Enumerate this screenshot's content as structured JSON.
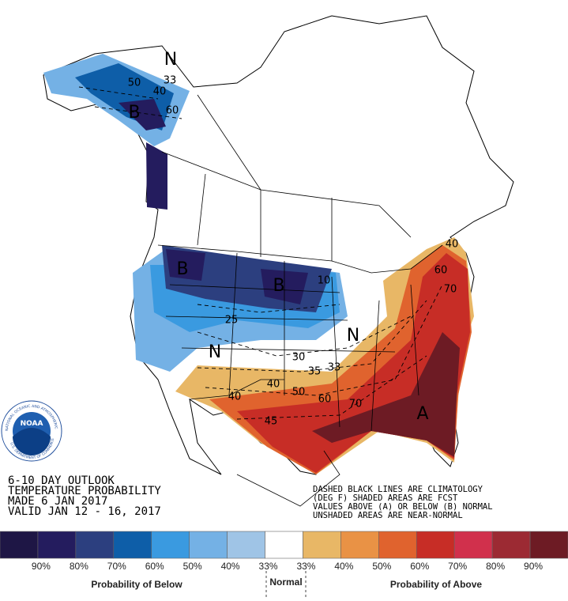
{
  "header": {
    "lines": [
      "6-10 DAY OUTLOOK",
      "TEMPERATURE PROBABILITY",
      "MADE  6 JAN 2017",
      "VALID  JAN 12 - 16, 2017"
    ]
  },
  "notes": {
    "lines": [
      "DASHED BLACK LINES ARE CLIMATOLOGY",
      "(DEG F) SHADED AREAS ARE FCST",
      "VALUES ABOVE (A) OR BELOW (B) NORMAL",
      "UNSHADED AREAS ARE NEAR-NORMAL"
    ]
  },
  "logo": {
    "name": "NOAA",
    "ring_top": "NATIONAL OCEANIC AND ATMOSPHERIC ADMINISTRATION",
    "ring_bottom": "U.S. DEPARTMENT OF COMMERCE"
  },
  "map_labels": [
    "N",
    "33",
    "50",
    "40",
    "60",
    "B",
    "B",
    "B",
    "10",
    "25",
    "N",
    "N",
    "30",
    "35",
    "33",
    "40",
    "50",
    "60",
    "40",
    "70",
    "45",
    "A",
    "60",
    "70",
    "40"
  ],
  "legend": {
    "colors": [
      "#1e1645",
      "#241c5e",
      "#2c3f7f",
      "#0e5ea8",
      "#3a9ae0",
      "#74b1e5",
      "#9fc4e6",
      "#ffffff",
      "#e8b766",
      "#e99245",
      "#e0632e",
      "#c72d26",
      "#d1304c",
      "#9c2a33",
      "#6d1b24"
    ],
    "labels": [
      "90%",
      "80%",
      "70%",
      "60%",
      "50%",
      "40%",
      "33%",
      "33%",
      "40%",
      "50%",
      "60%",
      "70%",
      "80%",
      "90%"
    ],
    "below": "Probability of Below",
    "normal": "Normal",
    "above": "Probability of Above"
  }
}
